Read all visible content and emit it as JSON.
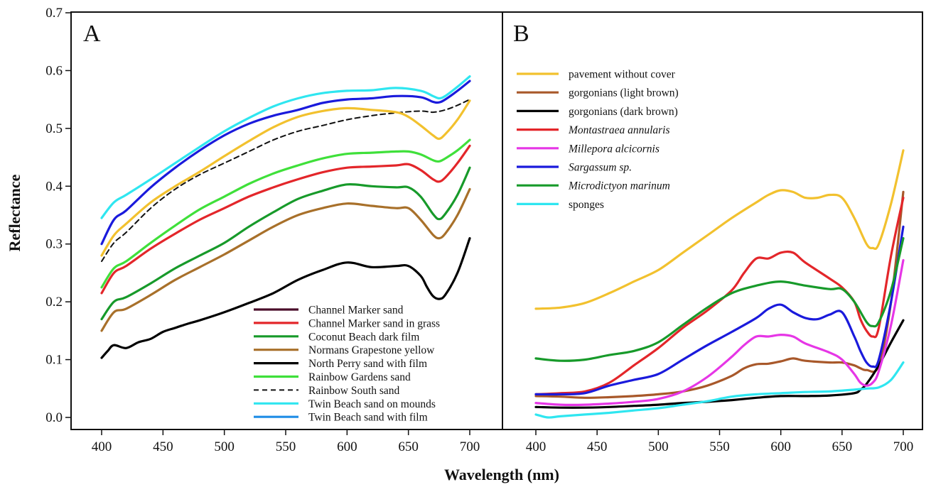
{
  "figure": {
    "ylabel": "Reflectance",
    "xlabel": "Wavelength (nm)",
    "yticks": [
      "0.0",
      "0.1",
      "0.2",
      "0.3",
      "0.4",
      "0.5",
      "0.6",
      "0.7"
    ],
    "xticks": [
      "400",
      "450",
      "500",
      "550",
      "600",
      "650",
      "700"
    ]
  },
  "chart_data": [
    {
      "type": "line",
      "panel": "A",
      "ylim": [
        0,
        0.7
      ],
      "xlim": [
        400,
        700
      ],
      "legend": "bottom-right",
      "series": [
        {
          "name": "Channel Marker sand",
          "color": "#4a0d2a",
          "style": "solid",
          "x": [],
          "y": []
        },
        {
          "name": "Channel Marker sand in grass",
          "color": "#e3262a",
          "style": "solid",
          "x": [
            400,
            410,
            420,
            440,
            460,
            480,
            500,
            520,
            540,
            560,
            580,
            600,
            620,
            640,
            650,
            660,
            670,
            675,
            680,
            690,
            700
          ],
          "y": [
            0.215,
            0.25,
            0.262,
            0.292,
            0.318,
            0.342,
            0.362,
            0.382,
            0.398,
            0.412,
            0.424,
            0.432,
            0.434,
            0.436,
            0.438,
            0.428,
            0.412,
            0.408,
            0.415,
            0.44,
            0.47
          ]
        },
        {
          "name": "Coconut Beach dark film",
          "color": "#179a2a",
          "style": "solid",
          "x": [
            400,
            410,
            420,
            440,
            460,
            480,
            500,
            520,
            540,
            560,
            580,
            600,
            620,
            640,
            650,
            660,
            670,
            675,
            680,
            690,
            700
          ],
          "y": [
            0.17,
            0.2,
            0.208,
            0.232,
            0.258,
            0.28,
            0.302,
            0.33,
            0.355,
            0.378,
            0.392,
            0.403,
            0.4,
            0.398,
            0.398,
            0.382,
            0.352,
            0.343,
            0.352,
            0.385,
            0.432
          ]
        },
        {
          "name": "Normans Grapestone yellow",
          "color": "#a8702a",
          "style": "solid",
          "x": [
            400,
            410,
            420,
            440,
            460,
            480,
            500,
            520,
            540,
            560,
            580,
            600,
            620,
            640,
            650,
            660,
            670,
            675,
            680,
            690,
            700
          ],
          "y": [
            0.15,
            0.182,
            0.188,
            0.212,
            0.238,
            0.26,
            0.282,
            0.306,
            0.33,
            0.35,
            0.362,
            0.37,
            0.366,
            0.362,
            0.362,
            0.342,
            0.316,
            0.31,
            0.318,
            0.35,
            0.395
          ]
        },
        {
          "name": "North Perry sand with film",
          "color": "#000000",
          "style": "solid",
          "x": [
            400,
            405,
            410,
            420,
            430,
            440,
            450,
            460,
            470,
            480,
            500,
            520,
            540,
            560,
            580,
            600,
            620,
            640,
            650,
            660,
            665,
            670,
            675,
            680,
            690,
            700
          ],
          "y": [
            0.103,
            0.115,
            0.125,
            0.12,
            0.13,
            0.136,
            0.148,
            0.155,
            0.162,
            0.168,
            0.182,
            0.198,
            0.215,
            0.238,
            0.255,
            0.268,
            0.26,
            0.262,
            0.262,
            0.245,
            0.226,
            0.21,
            0.205,
            0.212,
            0.25,
            0.31
          ]
        },
        {
          "name": "Rainbow Gardens sand",
          "color": "#3fe03a",
          "style": "solid",
          "x": [
            400,
            410,
            420,
            440,
            460,
            480,
            500,
            520,
            540,
            560,
            580,
            600,
            620,
            640,
            650,
            660,
            670,
            675,
            680,
            690,
            700
          ],
          "y": [
            0.225,
            0.258,
            0.27,
            0.302,
            0.332,
            0.36,
            0.382,
            0.404,
            0.422,
            0.436,
            0.448,
            0.456,
            0.458,
            0.46,
            0.46,
            0.455,
            0.445,
            0.443,
            0.448,
            0.462,
            0.48
          ]
        },
        {
          "name": "Rainbow South sand",
          "color": "#111111",
          "style": "dashed",
          "x": [
            400,
            410,
            420,
            440,
            460,
            480,
            500,
            520,
            540,
            560,
            580,
            600,
            620,
            640,
            660,
            670,
            680,
            690,
            700
          ],
          "y": [
            0.27,
            0.302,
            0.32,
            0.362,
            0.395,
            0.42,
            0.44,
            0.46,
            0.48,
            0.495,
            0.505,
            0.515,
            0.522,
            0.527,
            0.53,
            0.528,
            0.532,
            0.54,
            0.55
          ]
        },
        {
          "name": "Twin Beach sand on mounds",
          "color": "#2fe6f0",
          "style": "solid",
          "x": [
            400,
            410,
            420,
            440,
            460,
            480,
            500,
            520,
            540,
            560,
            580,
            600,
            620,
            640,
            660,
            670,
            675,
            680,
            690,
            700
          ],
          "y": [
            0.345,
            0.372,
            0.385,
            0.412,
            0.44,
            0.468,
            0.495,
            0.518,
            0.538,
            0.552,
            0.561,
            0.565,
            0.566,
            0.57,
            0.565,
            0.556,
            0.552,
            0.556,
            0.572,
            0.59
          ]
        },
        {
          "name": "Twin Beach sand with film",
          "color": "#1f8de6",
          "style": "solid",
          "x": [],
          "y": []
        },
        {
          "name": "",
          "color": "#1a1adc",
          "style": "solid",
          "x": [
            400,
            410,
            420,
            440,
            460,
            480,
            500,
            520,
            540,
            560,
            580,
            600,
            620,
            640,
            660,
            670,
            675,
            680,
            690,
            700
          ],
          "y": [
            0.3,
            0.342,
            0.358,
            0.398,
            0.432,
            0.462,
            0.488,
            0.508,
            0.522,
            0.532,
            0.544,
            0.55,
            0.552,
            0.556,
            0.554,
            0.546,
            0.545,
            0.55,
            0.565,
            0.582
          ]
        },
        {
          "name": "",
          "color": "#f2c12e",
          "style": "solid",
          "x": [
            400,
            410,
            420,
            440,
            460,
            480,
            500,
            520,
            540,
            560,
            580,
            600,
            620,
            640,
            650,
            660,
            670,
            675,
            680,
            690,
            700
          ],
          "y": [
            0.28,
            0.315,
            0.335,
            0.372,
            0.4,
            0.425,
            0.452,
            0.478,
            0.502,
            0.52,
            0.53,
            0.535,
            0.532,
            0.528,
            0.52,
            0.505,
            0.488,
            0.482,
            0.49,
            0.515,
            0.548
          ]
        }
      ]
    },
    {
      "type": "line",
      "panel": "B",
      "ylim": [
        0,
        0.7
      ],
      "xlim": [
        400,
        700
      ],
      "legend": "top-left",
      "series": [
        {
          "name": "pavement without cover",
          "italic": false,
          "color": "#f2c12e",
          "style": "solid",
          "x": [
            400,
            420,
            440,
            460,
            480,
            500,
            520,
            540,
            560,
            580,
            590,
            600,
            610,
            620,
            630,
            640,
            650,
            660,
            670,
            675,
            680,
            690,
            700
          ],
          "y": [
            0.188,
            0.19,
            0.198,
            0.215,
            0.235,
            0.255,
            0.285,
            0.315,
            0.345,
            0.372,
            0.385,
            0.393,
            0.39,
            0.38,
            0.38,
            0.385,
            0.38,
            0.345,
            0.3,
            0.293,
            0.3,
            0.37,
            0.462
          ]
        },
        {
          "name": "gorgonians (light brown)",
          "italic": false,
          "color": "#a8582a",
          "style": "solid",
          "x": [
            400,
            420,
            440,
            460,
            480,
            500,
            520,
            540,
            560,
            570,
            580,
            590,
            600,
            610,
            620,
            640,
            650,
            660,
            665,
            670,
            680,
            690,
            700
          ],
          "y": [
            0.037,
            0.036,
            0.034,
            0.035,
            0.037,
            0.04,
            0.045,
            0.055,
            0.072,
            0.085,
            0.092,
            0.093,
            0.097,
            0.102,
            0.098,
            0.095,
            0.095,
            0.09,
            0.085,
            0.082,
            0.09,
            0.2,
            0.39
          ]
        },
        {
          "name": "gorgonians (dark brown)",
          "italic": false,
          "color": "#000000",
          "style": "solid",
          "x": [
            400,
            420,
            440,
            460,
            480,
            500,
            520,
            540,
            560,
            580,
            600,
            620,
            640,
            660,
            665,
            670,
            680,
            690,
            700
          ],
          "y": [
            0.018,
            0.017,
            0.017,
            0.018,
            0.02,
            0.022,
            0.025,
            0.027,
            0.03,
            0.034,
            0.037,
            0.037,
            0.038,
            0.042,
            0.048,
            0.058,
            0.09,
            0.13,
            0.168
          ]
        },
        {
          "name": "Montastraea annularis",
          "italic": true,
          "color": "#e3262a",
          "style": "solid",
          "x": [
            400,
            420,
            440,
            460,
            480,
            500,
            520,
            540,
            560,
            570,
            580,
            590,
            600,
            610,
            620,
            640,
            650,
            660,
            665,
            670,
            675,
            680,
            690,
            700
          ],
          "y": [
            0.04,
            0.042,
            0.045,
            0.06,
            0.09,
            0.12,
            0.155,
            0.185,
            0.22,
            0.25,
            0.275,
            0.275,
            0.285,
            0.285,
            0.268,
            0.24,
            0.225,
            0.2,
            0.17,
            0.15,
            0.14,
            0.155,
            0.28,
            0.38
          ]
        },
        {
          "name": "Millepora alcicornis",
          "italic": true,
          "color": "#e636e6",
          "style": "solid",
          "x": [
            400,
            420,
            440,
            460,
            480,
            500,
            520,
            540,
            560,
            570,
            580,
            590,
            600,
            610,
            620,
            640,
            650,
            660,
            665,
            670,
            675,
            680,
            690,
            700
          ],
          "y": [
            0.025,
            0.022,
            0.022,
            0.024,
            0.027,
            0.032,
            0.045,
            0.07,
            0.105,
            0.125,
            0.14,
            0.14,
            0.143,
            0.14,
            0.128,
            0.112,
            0.1,
            0.075,
            0.06,
            0.055,
            0.06,
            0.08,
            0.16,
            0.272
          ]
        },
        {
          "name": "Sargassum sp.",
          "italic": true,
          "color": "#1a1adc",
          "style": "solid",
          "x": [
            400,
            420,
            440,
            460,
            480,
            500,
            520,
            540,
            560,
            580,
            590,
            600,
            610,
            620,
            630,
            640,
            650,
            660,
            665,
            670,
            675,
            680,
            690,
            700
          ],
          "y": [
            0.04,
            0.04,
            0.042,
            0.055,
            0.065,
            0.075,
            0.1,
            0.125,
            0.148,
            0.172,
            0.188,
            0.195,
            0.182,
            0.172,
            0.17,
            0.178,
            0.182,
            0.14,
            0.115,
            0.095,
            0.088,
            0.1,
            0.2,
            0.33
          ]
        },
        {
          "name": "Microdictyon marinum",
          "italic": true,
          "color": "#179a2a",
          "style": "solid",
          "x": [
            400,
            420,
            440,
            460,
            480,
            500,
            520,
            540,
            560,
            580,
            600,
            620,
            640,
            650,
            660,
            670,
            675,
            680,
            690,
            700
          ],
          "y": [
            0.102,
            0.098,
            0.1,
            0.108,
            0.115,
            0.13,
            0.16,
            0.19,
            0.215,
            0.228,
            0.235,
            0.228,
            0.222,
            0.222,
            0.2,
            0.165,
            0.158,
            0.165,
            0.22,
            0.31
          ]
        },
        {
          "name": "sponges",
          "italic": false,
          "color": "#2fe6f0",
          "style": "solid",
          "x": [
            400,
            410,
            420,
            440,
            460,
            480,
            500,
            520,
            540,
            560,
            580,
            600,
            620,
            640,
            660,
            670,
            680,
            690,
            700
          ],
          "y": [
            0.005,
            0.0,
            0.002,
            0.005,
            0.008,
            0.012,
            0.016,
            0.022,
            0.028,
            0.036,
            0.04,
            0.042,
            0.044,
            0.045,
            0.048,
            0.05,
            0.052,
            0.065,
            0.095
          ]
        }
      ]
    }
  ]
}
